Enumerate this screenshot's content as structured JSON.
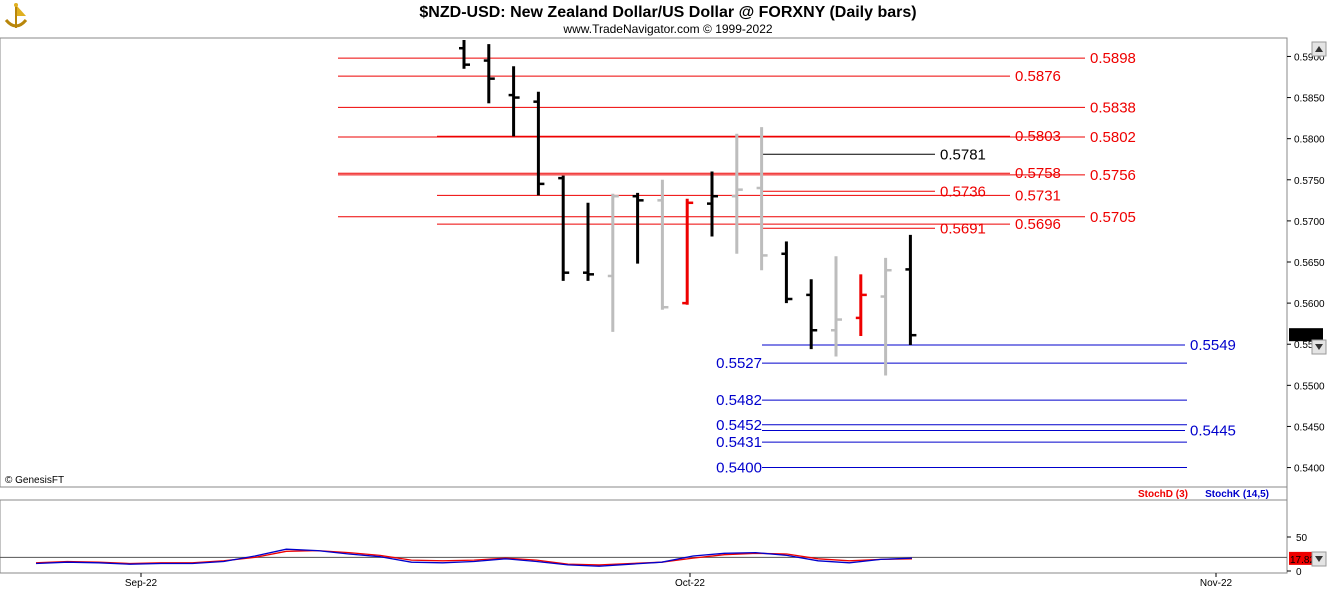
{
  "header": {
    "title": "$NZD-USD:  New Zealand Dollar/US Dollar @ FORXNY  (Daily bars)",
    "subtitle": "www.TradeNavigator.com © 1999-2022",
    "logo_icon": "navigator-ship-icon"
  },
  "credit": "© GenesisFT",
  "colors": {
    "up": "#000000",
    "down": "#000000",
    "gray": "#bdbdbd",
    "red": "#ee0000",
    "blue": "#0000cc",
    "grid": "#c8c8c8"
  },
  "chart_data": [
    {
      "type": "bar",
      "subtype": "ohlc",
      "title": "$NZD-USD:  New Zealand Dollar/US Dollar @ FORXNY  (Daily bars)",
      "ylim": [
        0.538,
        0.592
      ],
      "y_ticks": [
        "0.5900",
        "0.5850",
        "0.5800",
        "0.5750",
        "0.5700",
        "0.5650",
        "0.5600",
        "0.5550",
        "0.5500",
        "0.5450",
        "0.5400"
      ],
      "x_ticks": [
        "Sep-22",
        "Oct-22",
        "Nov-22"
      ],
      "last_price": "0.5561",
      "bars": [
        {
          "o": 0.591,
          "h": 0.592,
          "l": 0.5885,
          "c": 0.589,
          "color": "black"
        },
        {
          "o": 0.5895,
          "h": 0.5915,
          "l": 0.5843,
          "c": 0.5873,
          "color": "black"
        },
        {
          "o": 0.5853,
          "h": 0.5888,
          "l": 0.5803,
          "c": 0.585,
          "color": "black"
        },
        {
          "o": 0.5845,
          "h": 0.5857,
          "l": 0.5731,
          "c": 0.5745,
          "color": "black"
        },
        {
          "o": 0.5752,
          "h": 0.5755,
          "l": 0.5627,
          "c": 0.5637,
          "color": "black"
        },
        {
          "o": 0.5637,
          "h": 0.5722,
          "l": 0.5627,
          "c": 0.5635,
          "color": "black"
        },
        {
          "o": 0.5633,
          "h": 0.5733,
          "l": 0.5565,
          "c": 0.573,
          "color": "gray"
        },
        {
          "o": 0.573,
          "h": 0.5734,
          "l": 0.5648,
          "c": 0.5725,
          "color": "black"
        },
        {
          "o": 0.5725,
          "h": 0.575,
          "l": 0.5592,
          "c": 0.5595,
          "color": "gray"
        },
        {
          "o": 0.56,
          "h": 0.5727,
          "l": 0.5598,
          "c": 0.5722,
          "color": "red"
        },
        {
          "o": 0.5721,
          "h": 0.576,
          "l": 0.5681,
          "c": 0.573,
          "color": "black"
        },
        {
          "o": 0.573,
          "h": 0.5806,
          "l": 0.566,
          "c": 0.5738,
          "color": "gray"
        },
        {
          "o": 0.574,
          "h": 0.5814,
          "l": 0.564,
          "c": 0.5658,
          "color": "gray"
        },
        {
          "o": 0.566,
          "h": 0.5675,
          "l": 0.56,
          "c": 0.5605,
          "color": "black"
        },
        {
          "o": 0.561,
          "h": 0.5629,
          "l": 0.5544,
          "c": 0.5567,
          "color": "black"
        },
        {
          "o": 0.5567,
          "h": 0.5657,
          "l": 0.5535,
          "c": 0.558,
          "color": "gray"
        },
        {
          "o": 0.5582,
          "h": 0.5635,
          "l": 0.556,
          "c": 0.561,
          "color": "red"
        },
        {
          "o": 0.5608,
          "h": 0.5655,
          "l": 0.5512,
          "c": 0.564,
          "color": "gray"
        },
        {
          "o": 0.5641,
          "h": 0.5683,
          "l": 0.5549,
          "c": 0.5561,
          "color": "black"
        }
      ],
      "resistance_levels": [
        {
          "label": "0.5898",
          "value": 0.5898
        },
        {
          "label": "0.5876",
          "value": 0.5876
        },
        {
          "label": "0.5838",
          "value": 0.5838
        },
        {
          "label": "0.5803",
          "value": 0.5803
        },
        {
          "label": "0.5802",
          "value": 0.5802
        },
        {
          "label": "0.5781",
          "value": 0.5781
        },
        {
          "label": "0.5758",
          "value": 0.5758
        },
        {
          "label": "0.5756",
          "value": 0.5756
        },
        {
          "label": "0.5736",
          "value": 0.5736
        },
        {
          "label": "0.5731",
          "value": 0.5731
        },
        {
          "label": "0.5705",
          "value": 0.5705
        },
        {
          "label": "0.5696",
          "value": 0.5696
        },
        {
          "label": "0.5691",
          "value": 0.5691
        }
      ],
      "support_levels": [
        {
          "label": "0.5549",
          "value": 0.5549
        },
        {
          "label": "0.5527",
          "value": 0.5527
        },
        {
          "label": "0.5482",
          "value": 0.5482
        },
        {
          "label": "0.5452",
          "value": 0.5452
        },
        {
          "label": "0.5445",
          "value": 0.5445
        },
        {
          "label": "0.5431",
          "value": 0.5431
        },
        {
          "label": "0.5400",
          "value": 0.54
        }
      ]
    },
    {
      "type": "line",
      "ylim": [
        0,
        100
      ],
      "y_ticks": [
        "50",
        "0"
      ],
      "last_value": "17.82",
      "series": [
        {
          "name": "StochD (3)",
          "color": "#ee0000",
          "values": [
            12,
            14,
            13,
            11,
            12,
            12,
            15,
            20,
            29,
            30,
            27,
            23,
            16,
            15,
            16,
            19,
            16,
            10,
            9,
            11,
            13,
            19,
            24,
            26,
            25,
            18,
            15,
            17,
            18
          ]
        },
        {
          "name": "StochK (14,5)",
          "color": "#0000cc",
          "values": [
            11,
            13,
            12,
            10,
            11,
            11,
            14,
            22,
            32,
            30,
            25,
            21,
            13,
            12,
            14,
            18,
            14,
            9,
            7,
            10,
            13,
            22,
            26,
            27,
            23,
            15,
            12,
            17,
            19
          ]
        }
      ]
    }
  ]
}
